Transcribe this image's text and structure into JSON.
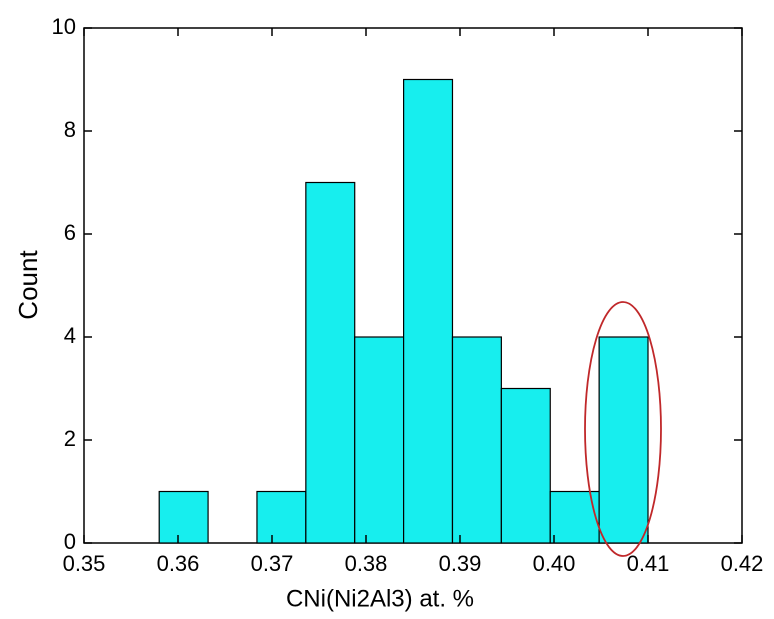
{
  "chart_data": {
    "type": "histogram",
    "xlabel": "CNi(Ni2Al3) at. %",
    "ylabel": "Count",
    "bins": [
      0.358,
      0.3632,
      0.3684,
      0.3736,
      0.3788,
      0.384,
      0.3892,
      0.3944,
      0.3996,
      0.4048,
      0.41
    ],
    "counts": [
      1,
      0,
      1,
      7,
      4,
      9,
      4,
      3,
      1,
      4
    ],
    "color": "#17eeee",
    "xlim": [
      0.35,
      0.42
    ],
    "xticks": [
      0.35,
      0.36,
      0.37,
      0.38,
      0.39,
      {
        "value": 0.4,
        "label": "0.40"
      },
      0.41,
      0.42
    ],
    "ylim": [
      0,
      10
    ],
    "yticks": [
      0,
      2,
      4,
      6,
      8,
      10
    ],
    "grid": false
  }
}
